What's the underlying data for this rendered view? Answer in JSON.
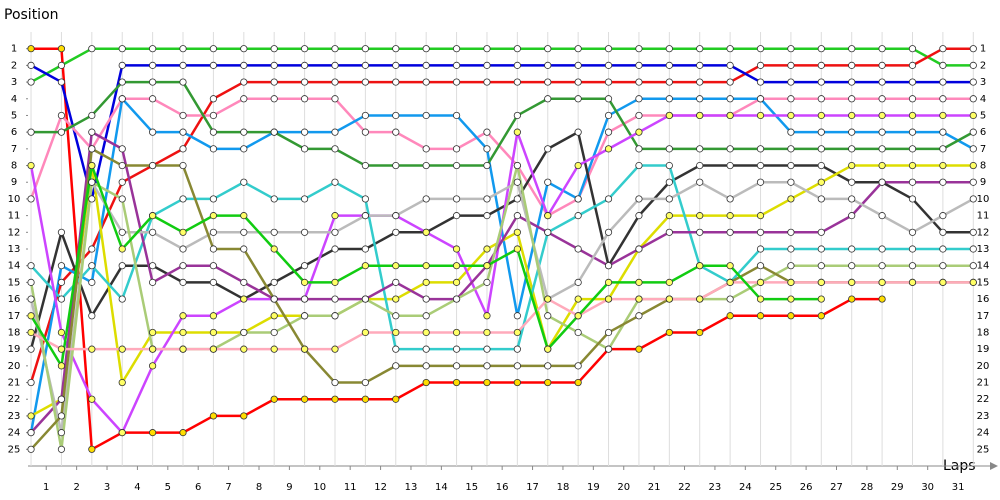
{
  "chart_data": {
    "type": "line",
    "y_label": "Position",
    "x_label": "Laps",
    "x": [
      0,
      1,
      2,
      3,
      4,
      5,
      6,
      7,
      8,
      9,
      10,
      11,
      12,
      13,
      14,
      15,
      16,
      17,
      18,
      19,
      20,
      21,
      22,
      23,
      24,
      25,
      26,
      27,
      28,
      29,
      30,
      31
    ],
    "xlim": [
      -0.1,
      31.55
    ],
    "xticks": [
      {
        "value": 0.5,
        "label": "1"
      },
      {
        "value": 1.5,
        "label": "2"
      },
      {
        "value": 2.5,
        "label": "3"
      },
      {
        "value": 3.5,
        "label": "4"
      },
      {
        "value": 4.5,
        "label": "5"
      },
      {
        "value": 5.5,
        "label": "6"
      },
      {
        "value": 6.5,
        "label": "7"
      },
      {
        "value": 7.5,
        "label": "8"
      },
      {
        "value": 8.5,
        "label": "9"
      },
      {
        "value": 9.5,
        "label": "10"
      },
      {
        "value": 10.5,
        "label": "11"
      },
      {
        "value": 11.5,
        "label": "12"
      },
      {
        "value": 12.5,
        "label": "13"
      },
      {
        "value": 13.5,
        "label": "14"
      },
      {
        "value": 14.5,
        "label": "15"
      },
      {
        "value": 15.5,
        "label": "16"
      },
      {
        "value": 16.5,
        "label": "17"
      },
      {
        "value": 17.5,
        "label": "18"
      },
      {
        "value": 18.5,
        "label": "19"
      },
      {
        "value": 19.5,
        "label": "20"
      },
      {
        "value": 20.5,
        "label": "21"
      },
      {
        "value": 21.5,
        "label": "22"
      },
      {
        "value": 22.5,
        "label": "23"
      },
      {
        "value": 23.5,
        "label": "24"
      },
      {
        "value": 24.5,
        "label": "25"
      },
      {
        "value": 25.5,
        "label": "26"
      },
      {
        "value": 26.5,
        "label": "27"
      },
      {
        "value": 27.5,
        "label": "28"
      },
      {
        "value": 28.5,
        "label": "29"
      },
      {
        "value": 29.5,
        "label": "30"
      },
      {
        "value": 30.5,
        "label": "31"
      }
    ],
    "ylim": [
      26,
      0
    ],
    "yticks": [
      1,
      2,
      3,
      4,
      5,
      6,
      7,
      8,
      9,
      10,
      11,
      12,
      13,
      14,
      15,
      16,
      17,
      18,
      19,
      20,
      21,
      22,
      23,
      24,
      25
    ],
    "grid": true,
    "series": [
      {
        "color": "#22cc22",
        "marker_color": "#ffffff",
        "values": [
          3,
          2,
          1,
          1,
          1,
          1,
          1,
          1,
          1,
          1,
          1,
          1,
          1,
          1,
          1,
          1,
          1,
          1,
          1,
          1,
          1,
          1,
          1,
          1,
          1,
          1,
          1,
          1,
          1,
          1,
          2,
          2
        ]
      },
      {
        "color": "#ff0000",
        "marker_color": "#ffdd00",
        "values": [
          1,
          1,
          25,
          24,
          24,
          24,
          23,
          23,
          22,
          22,
          22,
          22,
          22,
          21,
          21,
          21,
          21,
          21,
          21,
          19,
          19,
          18,
          18,
          17,
          17,
          17,
          17,
          16,
          16,
          null,
          null,
          null
        ]
      },
      {
        "color": "#ee1111",
        "marker_color": "#ffffff",
        "values": [
          21,
          15,
          13,
          9,
          8,
          7,
          4,
          3,
          3,
          3,
          3,
          3,
          3,
          3,
          3,
          3,
          3,
          3,
          3,
          3,
          3,
          3,
          3,
          3,
          2,
          2,
          2,
          2,
          2,
          2,
          1,
          1
        ]
      },
      {
        "color": "#0000dd",
        "marker_color": "#ffffff",
        "values": [
          2,
          3,
          10,
          2,
          2,
          2,
          2,
          2,
          2,
          2,
          2,
          2,
          2,
          2,
          2,
          2,
          2,
          2,
          2,
          2,
          2,
          2,
          2,
          2,
          3,
          3,
          3,
          3,
          3,
          3,
          3,
          3
        ]
      },
      {
        "color": "#ff88bb",
        "marker_color": "#ffffff",
        "values": [
          10,
          5,
          7,
          4,
          4,
          5,
          5,
          4,
          4,
          4,
          4,
          6,
          6,
          7,
          7,
          6,
          8,
          11,
          10,
          6,
          5,
          5,
          5,
          5,
          4,
          4,
          4,
          4,
          4,
          4,
          4,
          4
        ]
      },
      {
        "color": "#1199ee",
        "marker_color": "#ffffff",
        "values": [
          24,
          14,
          15,
          4,
          6,
          6,
          7,
          7,
          6,
          6,
          6,
          5,
          5,
          5,
          5,
          7,
          17,
          9,
          10,
          5,
          4,
          4,
          4,
          4,
          4,
          6,
          6,
          6,
          6,
          6,
          6,
          7
        ]
      },
      {
        "color": "#339933",
        "marker_color": "#ffffff",
        "values": [
          6,
          6,
          5,
          3,
          3,
          3,
          6,
          6,
          6,
          7,
          7,
          8,
          8,
          8,
          8,
          8,
          5,
          4,
          4,
          4,
          7,
          7,
          7,
          7,
          7,
          7,
          7,
          7,
          7,
          7,
          7,
          6
        ]
      },
      {
        "color": "#333333",
        "marker_color": "#ffffff",
        "values": [
          19,
          12,
          17,
          14,
          14,
          15,
          15,
          16,
          15,
          14,
          13,
          13,
          12,
          12,
          11,
          11,
          10,
          7,
          6,
          14,
          11,
          9,
          8,
          8,
          8,
          8,
          8,
          9,
          9,
          10,
          12,
          12
        ]
      },
      {
        "color": "#dddd00",
        "marker_color": "#ffff66",
        "values": [
          23,
          22,
          8,
          21,
          18,
          18,
          18,
          18,
          17,
          17,
          17,
          16,
          16,
          15,
          15,
          13,
          12,
          19,
          16,
          16,
          13,
          11,
          11,
          11,
          11,
          10,
          9,
          8,
          8,
          8,
          8,
          8
        ]
      },
      {
        "color": "#33cccc",
        "marker_color": "#ffffff",
        "values": [
          14,
          16,
          14,
          16,
          11,
          10,
          10,
          9,
          10,
          10,
          9,
          10,
          19,
          19,
          19,
          19,
          19,
          12,
          11,
          10,
          8,
          8,
          14,
          15,
          13,
          13,
          13,
          13,
          13,
          13,
          13,
          13
        ]
      },
      {
        "color": "#cc44ff",
        "marker_color": "#ffff66",
        "values": [
          8,
          18,
          22,
          24,
          20,
          17,
          17,
          16,
          16,
          16,
          11,
          11,
          11,
          12,
          13,
          17,
          6,
          11,
          8,
          7,
          6,
          5,
          5,
          5,
          5,
          5,
          5,
          5,
          5,
          5,
          5,
          5
        ]
      },
      {
        "color": "#993399",
        "marker_color": "#ffffff",
        "values": [
          24,
          22,
          6,
          7,
          15,
          14,
          14,
          15,
          16,
          16,
          16,
          16,
          15,
          16,
          16,
          14,
          11,
          12,
          13,
          14,
          13,
          12,
          12,
          12,
          12,
          12,
          12,
          11,
          9,
          9,
          9,
          9
        ]
      },
      {
        "color": "#bbbbbb",
        "marker_color": "#ffffff",
        "values": [
          16,
          24,
          9,
          12,
          12,
          13,
          12,
          12,
          12,
          12,
          12,
          11,
          11,
          10,
          10,
          10,
          9,
          16,
          15,
          12,
          10,
          10,
          9,
          10,
          9,
          9,
          10,
          10,
          11,
          12,
          11,
          10
        ]
      },
      {
        "color": "#aacc77",
        "marker_color": "#ffffff",
        "values": [
          15,
          25,
          9,
          10,
          19,
          19,
          19,
          18,
          18,
          17,
          17,
          16,
          17,
          17,
          16,
          15,
          8,
          17,
          18,
          19,
          16,
          16,
          16,
          16,
          15,
          14,
          14,
          14,
          14,
          14,
          14,
          14
        ]
      },
      {
        "color": "#888833",
        "marker_color": "#ffffff",
        "values": [
          25,
          23,
          7,
          8,
          8,
          8,
          13,
          13,
          16,
          19,
          21,
          21,
          20,
          20,
          20,
          20,
          20,
          20,
          20,
          18,
          17,
          16,
          16,
          15,
          14,
          15,
          15,
          15,
          15,
          15,
          15,
          15
        ]
      },
      {
        "color": "#ffaabb",
        "marker_color": "#ffff66",
        "values": [
          18,
          19,
          19,
          19,
          19,
          19,
          19,
          19,
          19,
          19,
          19,
          18,
          18,
          18,
          18,
          18,
          18,
          16,
          17,
          16,
          16,
          16,
          16,
          15,
          15,
          15,
          15,
          15,
          15,
          15,
          15,
          15
        ]
      },
      {
        "color": "#11cc11",
        "marker_color": "#ffff66",
        "values": [
          17,
          20,
          8,
          13,
          11,
          12,
          11,
          11,
          13,
          15,
          15,
          14,
          14,
          14,
          14,
          14,
          13,
          19,
          17,
          15,
          15,
          15,
          14,
          14,
          16,
          16,
          16,
          null,
          null,
          null,
          null,
          null
        ]
      }
    ]
  }
}
